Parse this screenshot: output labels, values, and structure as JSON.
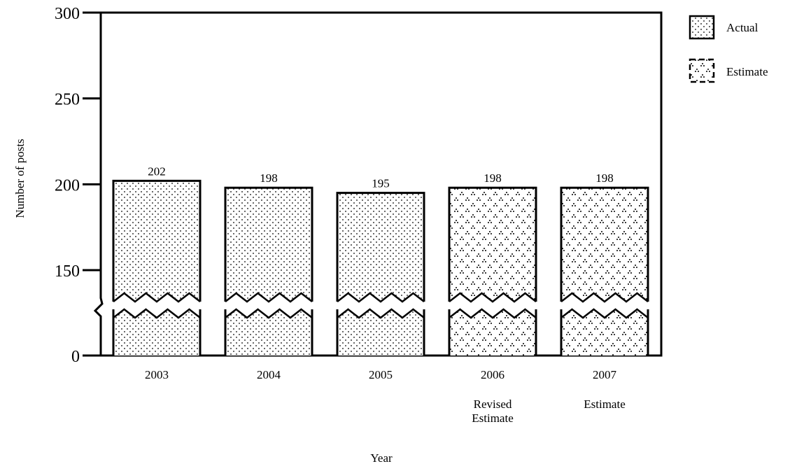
{
  "chart_data": {
    "type": "bar",
    "ylabel": "Number of posts",
    "xlabel": "Year",
    "ylim": [
      0,
      300
    ],
    "axis_break": true,
    "y_ticks": [
      "0",
      "150",
      "200",
      "250",
      "300"
    ],
    "categories": [
      "2003",
      "2004",
      "2005",
      "2006",
      "2007"
    ],
    "category_sublabels": [
      "",
      "",
      "",
      "Revised\nEstimate",
      "Estimate"
    ],
    "values": [
      202,
      198,
      195,
      198,
      198
    ],
    "value_labels": [
      "202",
      "198",
      "195",
      "198",
      "198"
    ],
    "series_kind": [
      "Actual",
      "Actual",
      "Actual",
      "Estimate",
      "Estimate"
    ],
    "legend": [
      {
        "label": "Actual",
        "pattern": "dots"
      },
      {
        "label": "Estimate",
        "pattern": "triangles"
      }
    ],
    "legend_position": "top-right",
    "grid": false
  }
}
